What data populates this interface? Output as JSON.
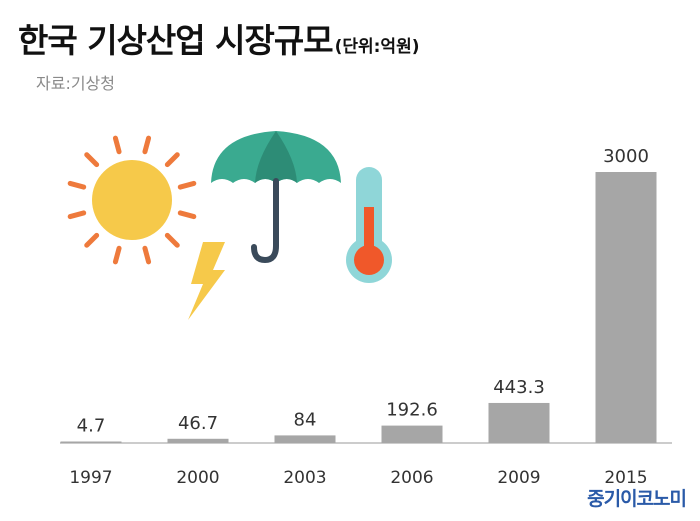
{
  "header": {
    "title": "한국 기상산업 시장규모",
    "unit": "(단위:억원)",
    "source": "자료:기상청"
  },
  "brand": "중기이코노미",
  "colors": {
    "bar": "#a6a6a6",
    "axis": "#bbbbbb",
    "sun": "#f6c94a",
    "sun_rays": "#ee7a3c",
    "bolt": "#f6c94a",
    "umbrella": "#3aaa90",
    "umbrella_dark": "#2d8c76",
    "umbrella_handle": "#3a4a5a",
    "thermo_glass": "#8fd6d8",
    "thermo_mercury": "#f0582a",
    "brand": "#2a5aa8"
  },
  "icons": [
    "sun-icon",
    "lightning-icon",
    "umbrella-icon",
    "thermometer-icon"
  ],
  "chart_data": {
    "type": "bar",
    "categories": [
      "1997",
      "2000",
      "2003",
      "2006",
      "2009",
      "2015"
    ],
    "values": [
      4.7,
      46.7,
      84,
      192.6,
      443.3,
      3000
    ],
    "title": "한국 기상산업 시장규모",
    "unit": "(단위:억원)",
    "ylim": [
      0,
      3000
    ],
    "grid": false,
    "legend": "none"
  }
}
